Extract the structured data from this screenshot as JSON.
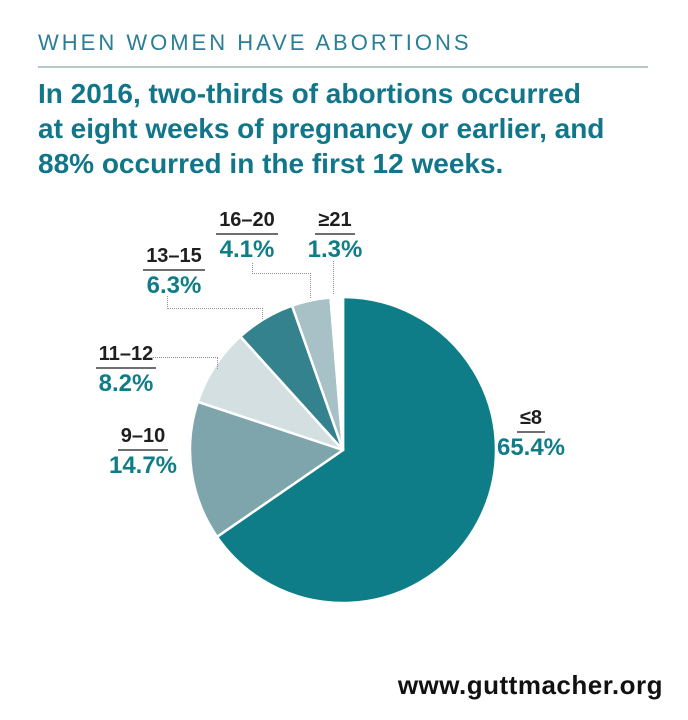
{
  "header": {
    "kicker": "WHEN WOMEN HAVE ABORTIONS"
  },
  "headline": {
    "lines": [
      "In 2016, two-thirds of abortions occurred",
      "at eight weeks of pregnancy or earlier, and",
      "88% occurred in the first 12 weeks."
    ],
    "full_text": "In 2016, two-thirds of abortions occurred at eight weeks of pregnancy or earlier, and 88% occurred in the first 12 weeks."
  },
  "chart_data": {
    "type": "pie",
    "unit": "% of abortions",
    "category_unit": "weeks of pregnancy",
    "start_at_12_oclock": true,
    "clockwise": true,
    "legend_position": "outside-callouts",
    "slices": [
      {
        "id": "le8",
        "label": "≤8",
        "value": 65.4,
        "display": "65.4%",
        "color": "#0E7D88"
      },
      {
        "id": "9-10",
        "label": "9–10",
        "value": 14.7,
        "display": "14.7%",
        "color": "#7EA5AB"
      },
      {
        "id": "11-12",
        "label": "11–12",
        "value": 8.2,
        "display": "8.2%",
        "color": "#D3DFE1"
      },
      {
        "id": "13-15",
        "label": "13–15",
        "value": 6.3,
        "display": "6.3%",
        "color": "#35828F"
      },
      {
        "id": "16-20",
        "label": "16–20",
        "value": 4.1,
        "display": "4.1%",
        "color": "#FFFFFF"
      },
      {
        "id": "ge21",
        "label": "≥21",
        "value": 1.3,
        "display": "1.3%",
        "color": "#FFFFFF"
      }
    ],
    "slice_fill_overrides": {
      "16-20": "#A7C1C6",
      "ge21": "#FFFFFF"
    }
  },
  "footer": {
    "website": "www.guttmacher.org"
  },
  "colors": {
    "accent_teal": "#0E7D88",
    "kicker_teal": "#2A7E95",
    "headline_teal": "#11768A",
    "divider_gray": "#B7C8CB",
    "label_black": "#1E1E1E",
    "leader_gray": "#8F8F8F",
    "slice_gap_white": "#FFFFFF"
  }
}
